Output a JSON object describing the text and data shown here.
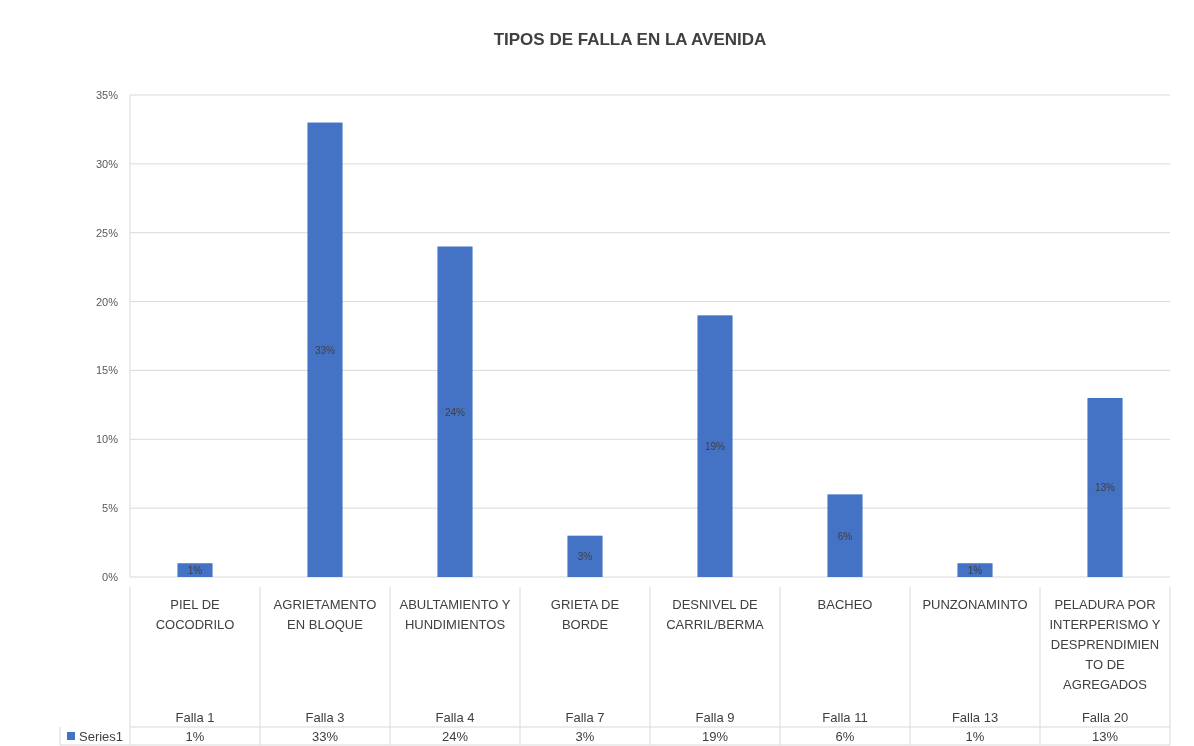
{
  "chart_data": {
    "type": "bar",
    "title": "TIPOS DE FALLA EN LA AVENIDA",
    "categories": [
      "PIEL DE COCODRILO",
      "AGRIETAMENTO EN BLOQUE",
      "ABULTAMIENTO Y HUNDIMIENTOS",
      "GRIETA DE BORDE",
      "DESNIVEL DE CARRIL/BERMA",
      "BACHEO",
      "PUNZONAMINTO",
      "PELADURA POR INTERPERISMO Y DESPRENDIMIENTO DE AGREGADOS"
    ],
    "series": [
      {
        "name": "Series1",
        "color": "#4472c4",
        "values": [
          1,
          33,
          24,
          3,
          19,
          6,
          1,
          13
        ],
        "value_labels": [
          "1%",
          "33%",
          "24%",
          "3%",
          "19%",
          "6%",
          "1%",
          "13%"
        ]
      }
    ],
    "annotations": [
      "Falla 1",
      "Falla 3",
      "Falla 4",
      "Falla 7",
      "Falla 9",
      "Falla 11",
      "Falla 13",
      "Falla 20"
    ],
    "ylim": [
      0,
      35
    ],
    "yticks": [
      {
        "value": 0,
        "label": "0%"
      },
      {
        "value": 5,
        "label": "5%"
      },
      {
        "value": 10,
        "label": "10%"
      },
      {
        "value": 15,
        "label": "15%"
      },
      {
        "value": 20,
        "label": "20%"
      },
      {
        "value": 25,
        "label": "25%"
      },
      {
        "value": 30,
        "label": "30%"
      },
      {
        "value": 35,
        "label": "35%"
      }
    ],
    "grid": "y"
  }
}
